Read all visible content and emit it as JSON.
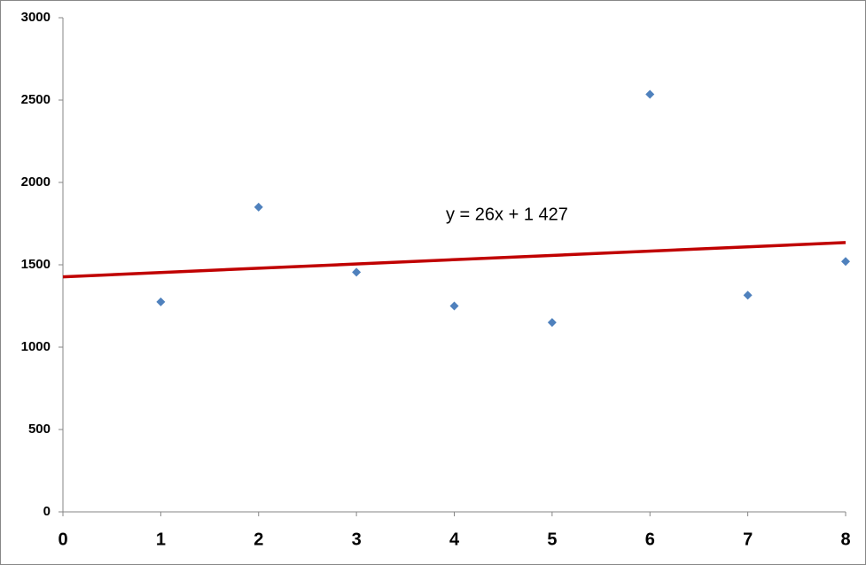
{
  "chart_data": {
    "type": "scatter",
    "x": [
      1,
      2,
      3,
      4,
      5,
      6,
      7,
      8
    ],
    "series": [
      {
        "color": "#4f81bd",
        "values": [
          1275,
          1850,
          1455,
          1250,
          1150,
          2535,
          1315,
          1520
        ]
      }
    ],
    "xlim": [
      0,
      8
    ],
    "xticks": [
      0,
      1,
      2,
      3,
      4,
      5,
      6,
      7,
      8
    ],
    "ylim": [
      0,
      3000
    ],
    "yticks": [
      0,
      500,
      1000,
      1500,
      2000,
      2500,
      3000
    ],
    "grid": false,
    "trendline": {
      "slope": 26,
      "intercept": 1427,
      "color": "#c00000",
      "label": "y = 26x + 1 427"
    }
  }
}
